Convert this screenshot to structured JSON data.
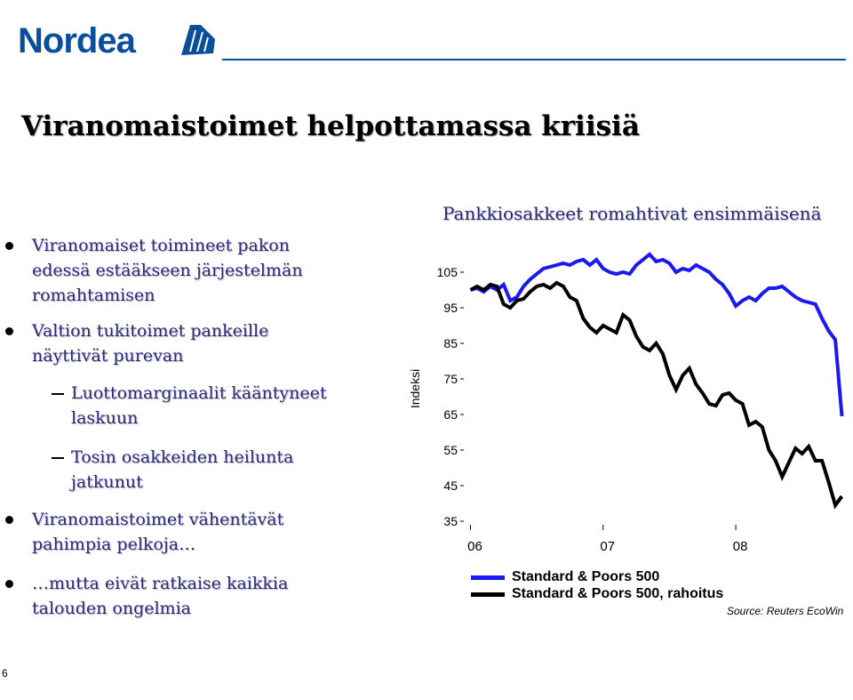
{
  "logo": {
    "text": "Nordea"
  },
  "slide": {
    "title": "Viranomaistoimet helpottamassa kriisiä",
    "page_number": "6"
  },
  "bullets": [
    {
      "level": 1,
      "lines": [
        "Viranomaiset toimineet pakon",
        "edessä estääkseen järjestelmän",
        "romahtamisen"
      ]
    },
    {
      "level": 1,
      "lines": [
        "Valtion tukitoimet pankeille",
        "näyttivät purevan"
      ]
    },
    {
      "level": 2,
      "lines": [
        "Luottomarginaalit kääntyneet",
        "laskuun"
      ]
    },
    {
      "level": 2,
      "lines": [
        "Tosin osakkeiden heilunta",
        "jatkunut"
      ]
    },
    {
      "level": 1,
      "lines": [
        "Viranomaistoimet vähentävät",
        "pahimpia pelkoja…"
      ]
    },
    {
      "level": 1,
      "lines": [
        "…mutta eivät ratkaise kaikkia",
        "talouden ongelmia"
      ]
    }
  ],
  "chart_data": {
    "type": "line",
    "title": "Pankkiosakkeet romahtivat ensimmäisenä",
    "ylabel": "Indeksi",
    "xlabel": "",
    "ylim": [
      35,
      105
    ],
    "yticks": [
      105,
      95,
      85,
      75,
      65,
      55,
      45,
      35
    ],
    "xlim": [
      2005.95,
      2008.85
    ],
    "xticks": [
      {
        "value": 2006,
        "label": "06"
      },
      {
        "value": 2007,
        "label": "07"
      },
      {
        "value": 2008,
        "label": "08"
      }
    ],
    "legend": "bottom",
    "source": "Source: Reuters EcoWin",
    "series": [
      {
        "name": "Standard & Poors 500",
        "color": "#1a1aee",
        "x": [
          2006.0,
          2006.05,
          2006.1,
          2006.15,
          2006.2,
          2006.25,
          2006.3,
          2006.35,
          2006.4,
          2006.45,
          2006.5,
          2006.55,
          2006.6,
          2006.65,
          2006.7,
          2006.75,
          2006.8,
          2006.85,
          2006.9,
          2006.95,
          2007.0,
          2007.05,
          2007.1,
          2007.15,
          2007.2,
          2007.25,
          2007.3,
          2007.35,
          2007.4,
          2007.45,
          2007.5,
          2007.55,
          2007.6,
          2007.65,
          2007.7,
          2007.75,
          2007.8,
          2007.85,
          2007.9,
          2007.95,
          2008.0,
          2008.05,
          2008.1,
          2008.15,
          2008.2,
          2008.25,
          2008.3,
          2008.35,
          2008.4,
          2008.45,
          2008.5,
          2008.55,
          2008.6,
          2008.65,
          2008.7,
          2008.75,
          2008.8
        ],
        "values": [
          100,
          100.5,
          99.5,
          101,
          100,
          101.5,
          97,
          98,
          101,
          103,
          104.5,
          106,
          106.5,
          107,
          107.5,
          107,
          108,
          108.5,
          107,
          108.5,
          106,
          105,
          104.5,
          105,
          104.5,
          107,
          108.5,
          110,
          108,
          108.5,
          107.5,
          105,
          106,
          105.5,
          107,
          106,
          105,
          103,
          101.5,
          99,
          95.5,
          97,
          98,
          97,
          99,
          100.5,
          100.5,
          101,
          99.5,
          98,
          97,
          96.5,
          96,
          92,
          88.5,
          86,
          64.5
        ]
      },
      {
        "name": "Standard & Poors 500, rahoitus",
        "color": "#000000",
        "x": [
          2006.0,
          2006.05,
          2006.1,
          2006.15,
          2006.2,
          2006.25,
          2006.3,
          2006.35,
          2006.4,
          2006.45,
          2006.5,
          2006.55,
          2006.6,
          2006.65,
          2006.7,
          2006.75,
          2006.8,
          2006.85,
          2006.9,
          2006.95,
          2007.0,
          2007.05,
          2007.1,
          2007.15,
          2007.2,
          2007.25,
          2007.3,
          2007.35,
          2007.4,
          2007.45,
          2007.5,
          2007.55,
          2007.6,
          2007.65,
          2007.7,
          2007.75,
          2007.8,
          2007.85,
          2007.9,
          2007.95,
          2008.0,
          2008.05,
          2008.1,
          2008.15,
          2008.2,
          2008.25,
          2008.3,
          2008.35,
          2008.4,
          2008.45,
          2008.5,
          2008.55,
          2008.6,
          2008.65,
          2008.7,
          2008.75,
          2008.8
        ],
        "values": [
          100,
          101,
          100,
          101.5,
          101,
          96,
          95,
          97,
          97.5,
          99.5,
          101,
          101.5,
          100.5,
          102,
          101,
          98,
          97,
          92,
          89.5,
          88,
          90,
          89,
          88,
          93,
          91.5,
          87,
          84,
          83,
          85,
          82,
          76,
          72,
          76,
          78,
          73.5,
          71,
          68,
          67.5,
          70.5,
          71,
          69,
          68,
          62,
          63,
          61.5,
          55,
          52,
          47.5,
          51.5,
          55.5,
          54,
          56,
          52,
          52,
          46,
          39.5,
          42
        ]
      }
    ]
  }
}
